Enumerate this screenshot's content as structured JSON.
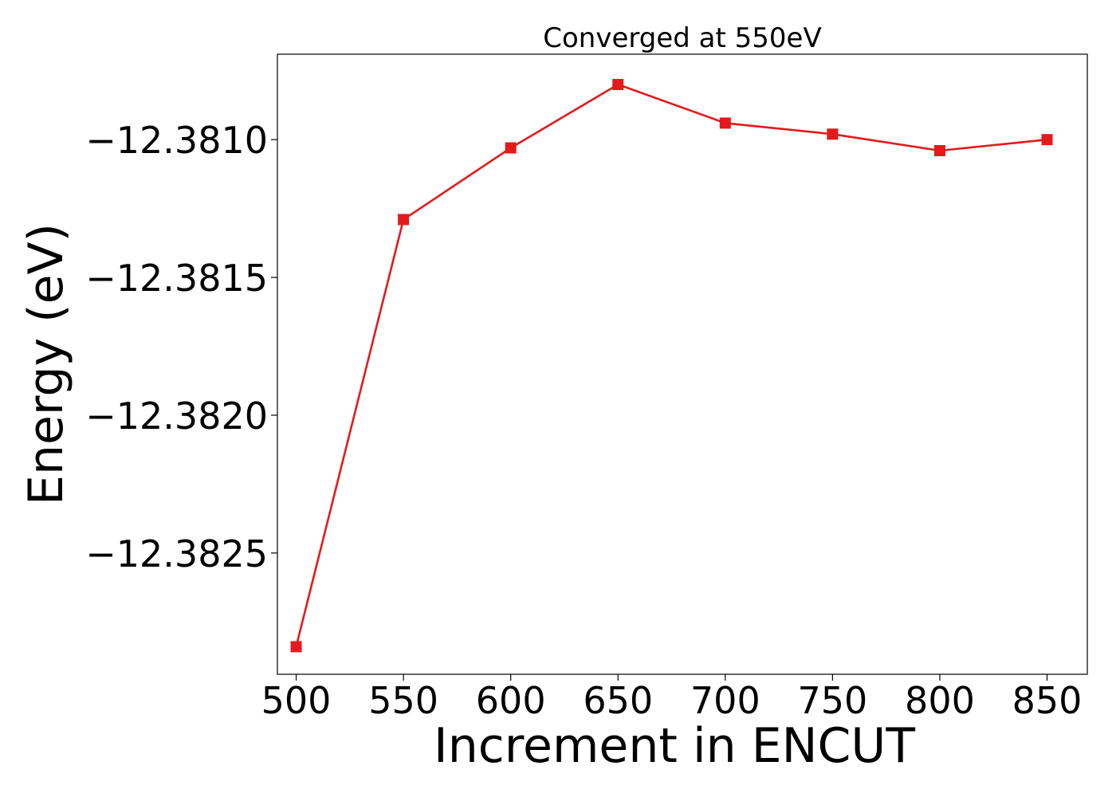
{
  "chart_data": {
    "type": "line",
    "title": "Converged at 550eV",
    "xlabel": "Increment in ENCUT",
    "ylabel": "Energy (eV)",
    "x": [
      500,
      550,
      600,
      650,
      700,
      750,
      800,
      850
    ],
    "xticks": [
      500,
      550,
      600,
      650,
      700,
      750,
      800,
      850
    ],
    "xtick_labels": [
      "500",
      "550",
      "600",
      "650",
      "700",
      "750",
      "800",
      "850"
    ],
    "yticks": [
      -12.3825,
      -12.382,
      -12.3815,
      -12.381
    ],
    "ytick_labels": [
      "−12.3825",
      "−12.3820",
      "−12.3815",
      "−12.3810"
    ],
    "xlim": [
      491.25,
      868.75
    ],
    "ylim": [
      -12.38294,
      -12.38069
    ],
    "grid": false,
    "series": [
      {
        "color": "#e31a1c",
        "marker": "square",
        "values": [
          -12.38284,
          -12.38129,
          -12.38103,
          -12.3808,
          -12.38094,
          -12.38098,
          -12.38104,
          -12.381
        ]
      }
    ]
  }
}
